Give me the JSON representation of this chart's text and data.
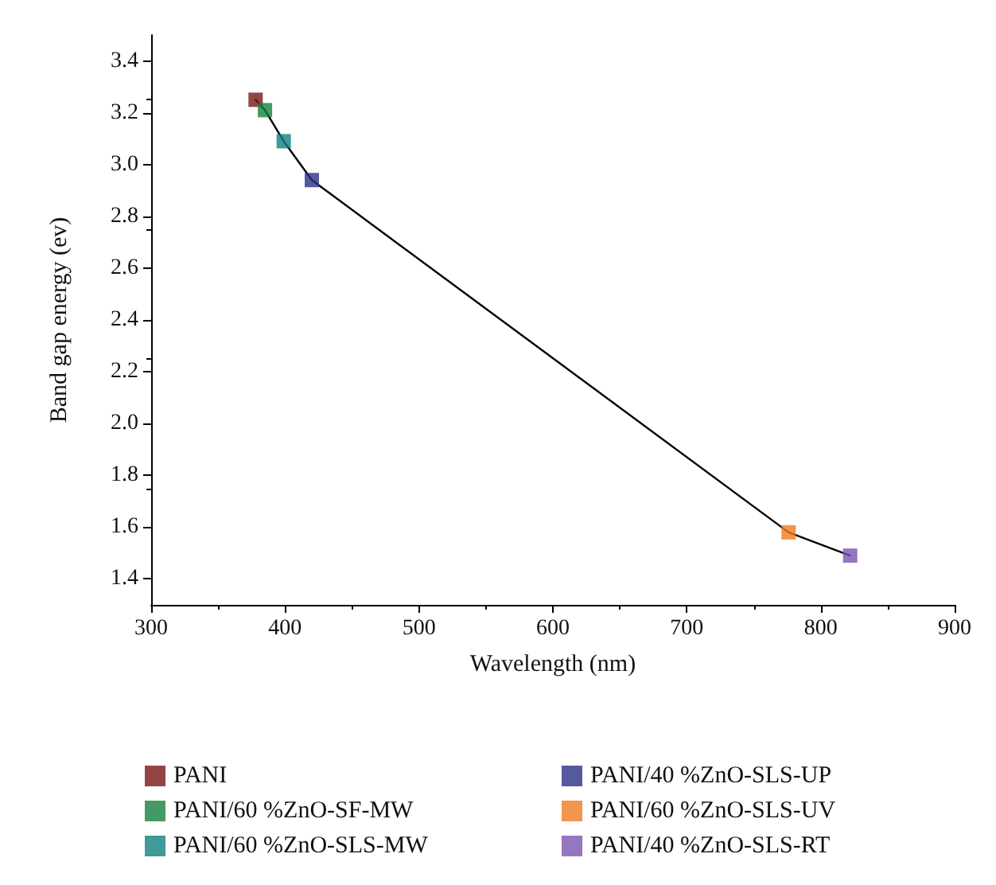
{
  "chart_data": {
    "type": "scatter",
    "xlabel": "Wavelength (nm)",
    "ylabel": "Band gap energy (ev)",
    "xlim": [
      300,
      900
    ],
    "xticks": [
      300,
      400,
      500,
      600,
      700,
      800,
      900
    ],
    "ylim": [
      1.3,
      3.5
    ],
    "yticks": [
      {
        "value": 1.4,
        "label": "1.4"
      },
      {
        "value": 1.6,
        "label": "1.6"
      },
      {
        "value": 1.8,
        "label": "1.8"
      },
      {
        "value": 2.0,
        "label": "2.0"
      },
      {
        "value": 2.2,
        "label": "2.2"
      },
      {
        "value": 2.4,
        "label": "2.4"
      },
      {
        "value": 2.6,
        "label": "2.6"
      },
      {
        "value": 2.8,
        "label": "2.8"
      },
      {
        "value": 3.0,
        "label": "3.0"
      },
      {
        "value": 3.2,
        "label": "3.2"
      },
      {
        "value": 3.4,
        "label": "3.4"
      }
    ],
    "grid": false,
    "legend": "bottom",
    "marker": "square",
    "series": [
      {
        "type": "line",
        "color": "#000000",
        "marker": "none",
        "line_style": "solid",
        "x": [
          378,
          385,
          399,
          420,
          776,
          822
        ],
        "values": [
          3.25,
          3.21,
          3.09,
          2.94,
          1.58,
          1.49
        ]
      },
      {
        "name": "PANI",
        "color": "#7a1515",
        "x": [
          378
        ],
        "values": [
          3.25
        ]
      },
      {
        "name": "PANI/60 %ZnO-SF-MW",
        "color": "#178040",
        "x": [
          385
        ],
        "values": [
          3.21
        ]
      },
      {
        "name": "PANI/60 %ZnO-SLS-MW",
        "color": "#128080",
        "x": [
          399
        ],
        "values": [
          3.09
        ]
      },
      {
        "name": "PANI/40 %ZnO-SLS-UP",
        "color": "#2a3088",
        "x": [
          420
        ],
        "values": [
          2.94
        ]
      },
      {
        "name": "PANI/60 %ZnO-SLS-UV",
        "color": "#f07a20",
        "x": [
          776
        ],
        "values": [
          1.58
        ]
      },
      {
        "name": "PANI/40 %ZnO-SLS-RT",
        "color": "#7a55b0",
        "x": [
          822
        ],
        "values": [
          1.49
        ]
      }
    ]
  }
}
